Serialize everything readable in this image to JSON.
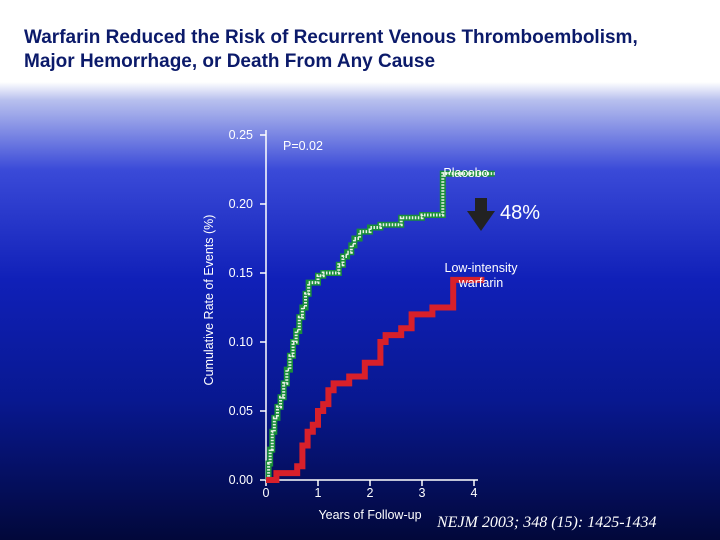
{
  "title": {
    "line1": "Warfarin Reduced the Risk of Recurrent Venous Thromboembolism,",
    "line2": "Major Hemorrhage, or Death From Any Cause"
  },
  "citation": "NEJM 2003; 348 (15): 1425-1434",
  "colors": {
    "background_top": "#ffffff",
    "background_bottom": "#02083a",
    "title": "#0b1a6a",
    "placebo": "#1a8f3a",
    "warfarin": "#d8202a",
    "text": "#ffffff",
    "arrow": "#222222"
  },
  "chart_data": {
    "type": "line",
    "step": true,
    "title": "",
    "xlabel": "Years of Follow-up",
    "ylabel": "Cumulative Rate of Events (%)",
    "xlim": [
      0,
      4
    ],
    "ylim": [
      0,
      0.25
    ],
    "x_ticks": [
      "0",
      "1",
      "2",
      "3",
      "4"
    ],
    "y_ticks": [
      "0.00",
      "0.05",
      "0.10",
      "0.15",
      "0.20",
      "0.25"
    ],
    "annotations": {
      "p_value": "P=0.02",
      "reduction": "48%"
    },
    "series": [
      {
        "name": "Placebo",
        "label_lines": [
          "Placebo"
        ],
        "color": "#1a8f3a",
        "points": [
          [
            0.0,
            0.0
          ],
          [
            0.05,
            0.012
          ],
          [
            0.08,
            0.022
          ],
          [
            0.12,
            0.035
          ],
          [
            0.16,
            0.045
          ],
          [
            0.22,
            0.053
          ],
          [
            0.28,
            0.06
          ],
          [
            0.34,
            0.07
          ],
          [
            0.4,
            0.08
          ],
          [
            0.46,
            0.09
          ],
          [
            0.52,
            0.1
          ],
          [
            0.58,
            0.108
          ],
          [
            0.64,
            0.118
          ],
          [
            0.7,
            0.125
          ],
          [
            0.76,
            0.135
          ],
          [
            0.82,
            0.143
          ],
          [
            0.9,
            0.143
          ],
          [
            1.0,
            0.148
          ],
          [
            1.1,
            0.15
          ],
          [
            1.3,
            0.15
          ],
          [
            1.4,
            0.156
          ],
          [
            1.48,
            0.162
          ],
          [
            1.56,
            0.165
          ],
          [
            1.64,
            0.17
          ],
          [
            1.7,
            0.175
          ],
          [
            1.8,
            0.18
          ],
          [
            2.0,
            0.183
          ],
          [
            2.2,
            0.185
          ],
          [
            2.6,
            0.19
          ],
          [
            3.0,
            0.192
          ],
          [
            3.4,
            0.192
          ],
          [
            3.4,
            0.222
          ],
          [
            4.4,
            0.222
          ]
        ]
      },
      {
        "name": "Low-intensity warfarin",
        "label_lines": [
          "Low-intensity",
          "warfarin"
        ],
        "color": "#d8202a",
        "points": [
          [
            0.0,
            0.0
          ],
          [
            0.2,
            0.005
          ],
          [
            0.6,
            0.01
          ],
          [
            0.7,
            0.025
          ],
          [
            0.8,
            0.035
          ],
          [
            0.9,
            0.04
          ],
          [
            1.0,
            0.05
          ],
          [
            1.1,
            0.055
          ],
          [
            1.2,
            0.065
          ],
          [
            1.3,
            0.07
          ],
          [
            1.6,
            0.075
          ],
          [
            1.9,
            0.085
          ],
          [
            2.2,
            0.1
          ],
          [
            2.3,
            0.105
          ],
          [
            2.6,
            0.11
          ],
          [
            2.8,
            0.12
          ],
          [
            3.2,
            0.125
          ],
          [
            3.6,
            0.145
          ],
          [
            4.2,
            0.145
          ]
        ]
      }
    ]
  }
}
